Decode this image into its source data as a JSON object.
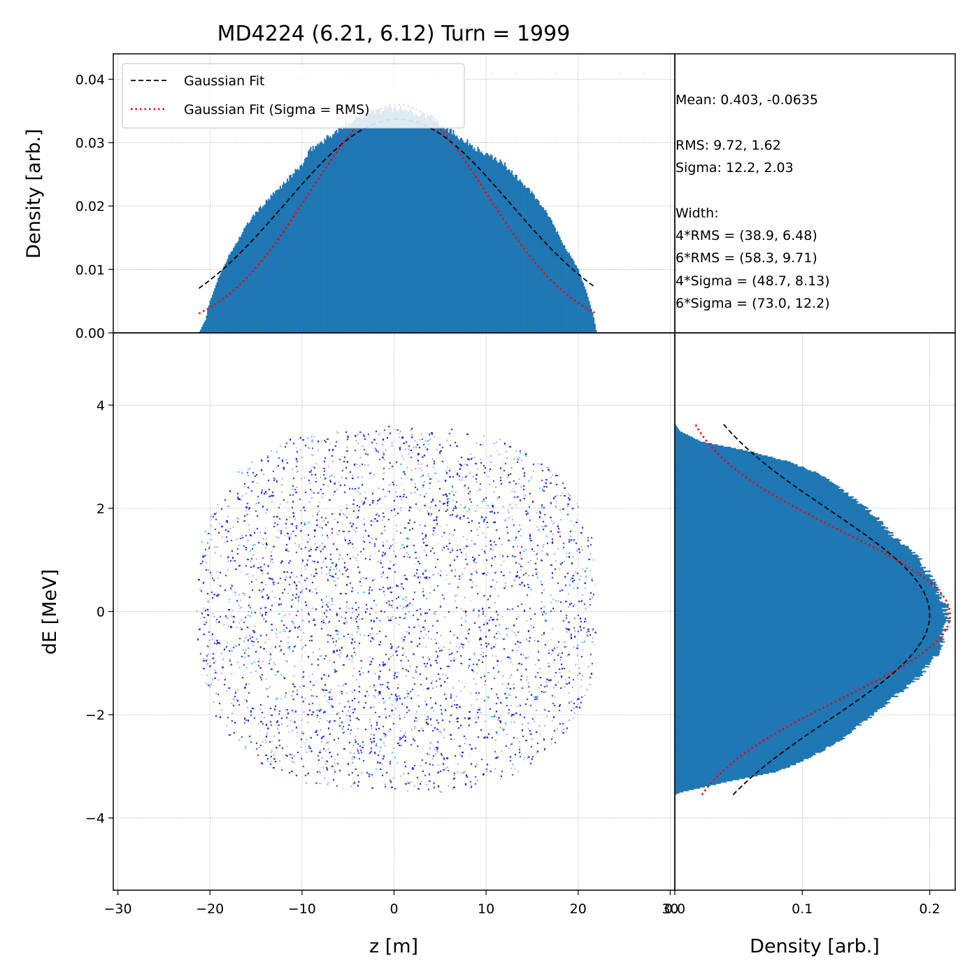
{
  "title": "MD4224 (6.21, 6.12) Turn = 1999",
  "colors": {
    "hist": "#1f77b4",
    "gauss_fit": "#000000",
    "gauss_rms": "#ff0000",
    "scatter_dark": "#0000cc",
    "scatter_light": "#3fbfff"
  },
  "chart_data": [
    {
      "id": "top-histogram",
      "type": "bar",
      "ylabel": "Density [arb.]",
      "xlim": [
        -30.5,
        30.5
      ],
      "ylim": [
        0,
        0.044
      ],
      "yticks": [
        0.0,
        0.01,
        0.02,
        0.03,
        0.04
      ],
      "ytick_labels": [
        "0.00",
        "0.01",
        "0.02",
        "0.03",
        "0.04"
      ],
      "grid": true,
      "legend": {
        "placement": "upper-left",
        "entries": [
          "Gaussian Fit",
          "Gaussian Fit (Sigma = RMS)"
        ]
      },
      "histogram_profile": {
        "x": [
          -21.2,
          -20.5,
          -20,
          -19,
          -18,
          -17,
          -16,
          -15,
          -14,
          -13,
          -12,
          -11,
          -10,
          -9,
          -8,
          -7,
          -6,
          -5,
          -4,
          -3,
          -2,
          -1,
          0,
          1,
          2,
          3,
          4,
          5,
          6,
          7,
          8,
          9,
          10,
          11,
          12,
          13,
          14,
          15,
          16,
          17,
          18,
          19,
          20,
          21,
          21.6,
          22
        ],
        "y": [
          0.0,
          0.002,
          0.005,
          0.009,
          0.012,
          0.0145,
          0.017,
          0.019,
          0.0205,
          0.022,
          0.0235,
          0.025,
          0.0265,
          0.029,
          0.03,
          0.031,
          0.032,
          0.033,
          0.034,
          0.0345,
          0.035,
          0.0352,
          0.0355,
          0.0352,
          0.035,
          0.0345,
          0.034,
          0.033,
          0.032,
          0.031,
          0.03,
          0.029,
          0.028,
          0.0275,
          0.0265,
          0.025,
          0.0235,
          0.022,
          0.02,
          0.018,
          0.015,
          0.0125,
          0.01,
          0.006,
          0.003,
          0.0
        ]
      },
      "series": [
        {
          "name": "Gaussian Fit",
          "style": "dashed",
          "mean": 0.403,
          "sigma": 12.2,
          "amplitude": 0.0337,
          "x_range": [
            -21.2,
            21.8
          ]
        },
        {
          "name": "Gaussian Fit (Sigma = RMS)",
          "style": "dotted",
          "mean": 0.403,
          "sigma": 9.72,
          "amplitude": 0.036,
          "x_range": [
            -21.2,
            21.8
          ]
        }
      ]
    },
    {
      "id": "phase-space",
      "type": "scatter",
      "xlabel": "z [m]",
      "ylabel": "dE [MeV]",
      "xlim": [
        -30.5,
        30.5
      ],
      "ylim": [
        -5.4,
        5.4
      ],
      "xticks": [
        -30,
        -20,
        -10,
        0,
        10,
        20,
        30
      ],
      "xtick_labels": [
        "−30",
        "−20",
        "−10",
        "0",
        "10",
        "20",
        "30"
      ],
      "yticks": [
        -4,
        -2,
        0,
        2,
        4
      ],
      "ytick_labels": [
        "−4",
        "−2",
        "0",
        "2",
        "4"
      ],
      "grid": true,
      "bunch_extent": {
        "z": [
          -21.5,
          22.0
        ],
        "dE": [
          -3.5,
          3.6
        ]
      }
    },
    {
      "id": "right-histogram",
      "type": "bar",
      "orientation": "horizontal",
      "xlabel": "Density [arb.]",
      "xlim": [
        0,
        0.22
      ],
      "xticks": [
        0.0,
        0.1,
        0.2
      ],
      "xtick_labels": [
        "0.0",
        "0.1",
        "0.2"
      ],
      "ylim": [
        -5.4,
        5.4
      ],
      "grid": true,
      "histogram_profile": {
        "dE": [
          -3.55,
          -3.5,
          -3.3,
          -3.1,
          -2.9,
          -2.7,
          -2.5,
          -2.3,
          -2.1,
          -1.9,
          -1.7,
          -1.5,
          -1.3,
          -1.1,
          -0.9,
          -0.7,
          -0.5,
          -0.3,
          -0.1,
          0.1,
          0.3,
          0.5,
          0.7,
          0.9,
          1.1,
          1.3,
          1.5,
          1.7,
          1.9,
          2.1,
          2.3,
          2.5,
          2.7,
          2.9,
          3.1,
          3.3,
          3.5,
          3.65
        ],
        "density": [
          0.0,
          0.005,
          0.04,
          0.08,
          0.1,
          0.115,
          0.13,
          0.14,
          0.15,
          0.16,
          0.17,
          0.18,
          0.19,
          0.197,
          0.203,
          0.208,
          0.21,
          0.213,
          0.214,
          0.212,
          0.208,
          0.204,
          0.2,
          0.195,
          0.19,
          0.18,
          0.17,
          0.163,
          0.155,
          0.145,
          0.135,
          0.125,
          0.11,
          0.09,
          0.06,
          0.02,
          0.004,
          0.0
        ]
      },
      "series": [
        {
          "name": "Gaussian Fit",
          "style": "dashed",
          "mean": -0.0635,
          "sigma": 2.03,
          "amplitude": 0.2,
          "dE_range": [
            -3.55,
            3.65
          ]
        },
        {
          "name": "Gaussian Fit (Sigma = RMS)",
          "style": "dotted",
          "mean": -0.0635,
          "sigma": 1.62,
          "amplitude": 0.216,
          "dE_range": [
            -3.55,
            3.65
          ]
        }
      ]
    }
  ],
  "stats": {
    "mean": "Mean: 0.403, -0.0635",
    "rms": "RMS: 9.72, 1.62",
    "sigma": "Sigma: 12.2, 2.03",
    "width_header": "Width:",
    "width_4rms": "4*RMS = (38.9, 6.48)",
    "width_6rms": "6*RMS = (58.3, 9.71)",
    "width_4sigma": "4*Sigma = (48.7, 8.13)",
    "width_6sigma": "6*Sigma = (73.0, 12.2)"
  }
}
